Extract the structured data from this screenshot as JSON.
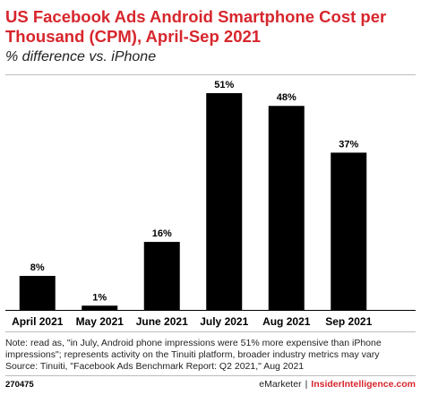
{
  "header": {
    "title": "US Facebook Ads Android Smartphone Cost per Thousand (CPM), April-Sep 2021",
    "subtitle": "% difference vs. iPhone"
  },
  "chart_data": {
    "type": "bar",
    "categories": [
      "April 2021",
      "May 2021",
      "June 2021",
      "July 2021",
      "Aug 2021",
      "Sep 2021"
    ],
    "values": [
      8,
      1,
      16,
      51,
      48,
      37
    ],
    "value_labels": [
      "8%",
      "1%",
      "16%",
      "51%",
      "48%",
      "37%"
    ],
    "ylim": [
      0,
      51
    ],
    "grid": false,
    "bar_color": "#000000"
  },
  "notes": {
    "line1": "Note: read as, \"in July, Android phone impressions were 51% more expensive than iPhone",
    "line2": "impressions\"; represents activity on the Tinuiti platform, broader industry metrics may vary",
    "line3": "Source: Tinuiti, \"Facebook Ads Benchmark Report: Q2 2021,\" Aug 2021"
  },
  "footer": {
    "chart_id": "270475",
    "brand_emarketer": "eMarketer",
    "brand_separator": "|",
    "brand_insider": "InsiderIntelligence.com"
  },
  "colors": {
    "title": "#d7262d",
    "bars": "#000000",
    "brand_accent": "#d7262d"
  }
}
